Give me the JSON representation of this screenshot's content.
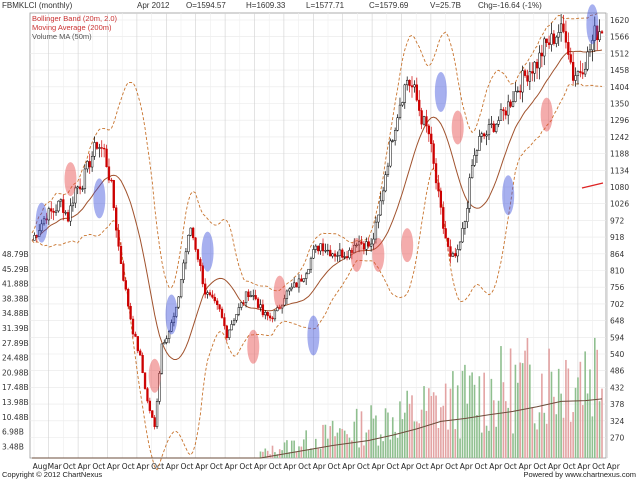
{
  "header": {
    "symbol": "FBMKLCI (monthly)",
    "date": "Apr 2012",
    "open": "O=1594.57",
    "high": "H=1609.33",
    "low": "L=1577.71",
    "close": "C=1579.69",
    "volume": "V=25.7B",
    "change": "Chg=-16.64 (-1%)"
  },
  "legend": {
    "bollinger": "Bollinger Band (20m, 2.0)",
    "moving_average": "Moving Average (200m)",
    "volume_ma": "Volume MA (50m)"
  },
  "footer": {
    "copyright": "Copyright © 2012 ChartNexus",
    "powered": "Powered by www.chartnexus.com"
  },
  "colors": {
    "up": "#000000",
    "down": "#cc0000",
    "bollinger": "#c8742e",
    "moving_average": "#a0522d",
    "volume": "#8fbf8f",
    "volume_ma": "#6b4c3b",
    "blue_marker": "#3c50dc",
    "red_marker": "#e64646"
  },
  "chart_data": {
    "type": "candlestick",
    "price_axis": {
      "position": "right",
      "ticks": [
        "1620",
        "1566",
        "1512",
        "1458",
        "1404",
        "1350",
        "1296",
        "1242",
        "1188",
        "1134",
        "1080",
        "1026",
        "972",
        "918",
        "864",
        "810",
        "756",
        "702",
        "648",
        "594",
        "540",
        "486",
        "432",
        "378",
        "324",
        "270"
      ],
      "range": [
        245,
        1625
      ]
    },
    "volume_axis": {
      "position": "left",
      "unit": "B",
      "ticks": [
        "48.79B",
        "45.29B",
        "41.88B",
        "38.38B",
        "34.88B",
        "31.39B",
        "27.89B",
        "24.48B",
        "20.98B",
        "17.48B",
        "13.98B",
        "10.48B",
        "6.98B",
        "3.48B"
      ],
      "range": [
        0,
        50
      ]
    },
    "x_labels": [
      "Aug",
      "Mar",
      "Oct",
      "Apr",
      "Oct",
      "Apr",
      "Oct",
      "Apr",
      "Oct",
      "Apr",
      "Oct",
      "Apr",
      "Oct",
      "Apr",
      "Oct",
      "Apr",
      "Oct",
      "Apr",
      "Oct",
      "Apr",
      "Oct",
      "Apr",
      "Oct",
      "Apr",
      "Oct",
      "Apr",
      "Oct",
      "Apr",
      "Oct",
      "Apr",
      "Oct",
      "Apr",
      "Oct",
      "Apr",
      "Oct",
      "Apr",
      "Oct",
      "Apr",
      "Oct",
      "Apr"
    ],
    "close_path": [
      [
        0,
        920
      ],
      [
        3,
        960
      ],
      [
        6,
        1000
      ],
      [
        9,
        1010
      ],
      [
        12,
        1040
      ],
      [
        15,
        990
      ],
      [
        18,
        1080
      ],
      [
        21,
        1100
      ],
      [
        24,
        1165
      ],
      [
        27,
        1220
      ],
      [
        30,
        1195
      ],
      [
        33,
        1085
      ],
      [
        36,
        900
      ],
      [
        39,
        760
      ],
      [
        42,
        640
      ],
      [
        45,
        555
      ],
      [
        48,
        420
      ],
      [
        51,
        340
      ],
      [
        54,
        600
      ],
      [
        57,
        640
      ],
      [
        60,
        700
      ],
      [
        63,
        850
      ],
      [
        66,
        960
      ],
      [
        69,
        870
      ],
      [
        72,
        760
      ],
      [
        75,
        730
      ],
      [
        78,
        700
      ],
      [
        81,
        630
      ],
      [
        84,
        680
      ],
      [
        87,
        720
      ],
      [
        90,
        760
      ],
      [
        93,
        740
      ],
      [
        96,
        690
      ],
      [
        99,
        680
      ],
      [
        102,
        700
      ],
      [
        105,
        750
      ],
      [
        108,
        770
      ],
      [
        111,
        790
      ],
      [
        114,
        830
      ],
      [
        117,
        880
      ],
      [
        120,
        910
      ],
      [
        123,
        890
      ],
      [
        126,
        880
      ],
      [
        129,
        880
      ],
      [
        132,
        885
      ],
      [
        135,
        920
      ],
      [
        138,
        910
      ],
      [
        141,
        900
      ],
      [
        144,
        990
      ],
      [
        147,
        1130
      ],
      [
        150,
        1250
      ],
      [
        153,
        1350
      ],
      [
        156,
        1420
      ],
      [
        159,
        1380
      ],
      [
        162,
        1300
      ],
      [
        165,
        1250
      ],
      [
        168,
        1100
      ],
      [
        171,
        960
      ],
      [
        174,
        860
      ],
      [
        177,
        875
      ],
      [
        180,
        980
      ],
      [
        183,
        1150
      ],
      [
        186,
        1230
      ],
      [
        189,
        1250
      ],
      [
        192,
        1280
      ],
      [
        195,
        1300
      ],
      [
        198,
        1340
      ],
      [
        201,
        1380
      ],
      [
        204,
        1420
      ],
      [
        207,
        1450
      ],
      [
        210,
        1470
      ],
      [
        213,
        1520
      ],
      [
        216,
        1540
      ],
      [
        219,
        1570
      ],
      [
        222,
        1560
      ],
      [
        225,
        1430
      ],
      [
        228,
        1450
      ],
      [
        231,
        1490
      ],
      [
        234,
        1560
      ],
      [
        237,
        1580
      ]
    ],
    "volume_ma_path": [
      [
        0,
        0
      ],
      [
        95,
        0
      ],
      [
        110,
        1.5
      ],
      [
        125,
        3
      ],
      [
        140,
        4.2
      ],
      [
        150,
        5.5
      ],
      [
        160,
        7
      ],
      [
        170,
        8.8
      ],
      [
        180,
        9.5
      ],
      [
        190,
        10.4
      ],
      [
        200,
        11.2
      ],
      [
        210,
        12.3
      ],
      [
        220,
        13.6
      ],
      [
        230,
        13.8
      ],
      [
        237,
        14.2
      ]
    ],
    "marker_months": [
      {
        "month": 4,
        "price": 975,
        "color": "blue"
      },
      {
        "month": 16,
        "price": 1110,
        "color": "red"
      },
      {
        "month": 28,
        "price": 1050,
        "color": "blue"
      },
      {
        "month": 51,
        "price": 500,
        "color": "red"
      },
      {
        "month": 58,
        "price": 690,
        "color": "blue"
      },
      {
        "month": 73,
        "price": 885,
        "color": "blue"
      },
      {
        "month": 92,
        "price": 590,
        "color": "red"
      },
      {
        "month": 103,
        "price": 758,
        "color": "red"
      },
      {
        "month": 117,
        "price": 625,
        "color": "blue"
      },
      {
        "month": 135,
        "price": 875,
        "color": "red"
      },
      {
        "month": 144,
        "price": 875,
        "color": "red"
      },
      {
        "month": 156,
        "price": 905,
        "color": "red"
      },
      {
        "month": 170,
        "price": 1380,
        "color": "blue"
      },
      {
        "month": 177,
        "price": 1270,
        "color": "red"
      },
      {
        "month": 198,
        "price": 1060,
        "color": "blue"
      },
      {
        "month": 214,
        "price": 1310,
        "color": "red"
      },
      {
        "month": 233,
        "price": 1590,
        "color": "blue"
      }
    ]
  }
}
